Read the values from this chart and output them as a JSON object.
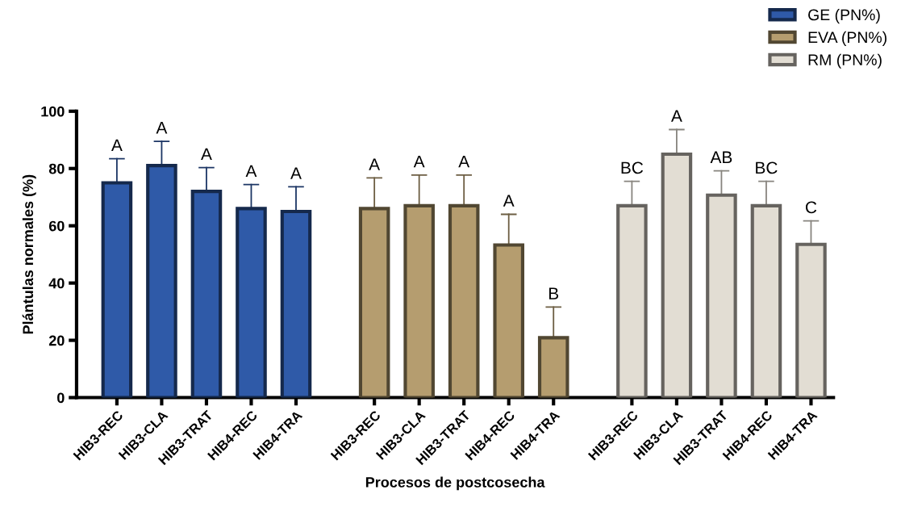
{
  "chart_data": {
    "type": "bar",
    "xlabel": "Procesos de postcosecha",
    "ylabel": "Plántulas normales (%)",
    "categories": [
      "HIB3-REC",
      "HIB3-CLA",
      "HIB3-TRAT",
      "HIB4-REC",
      "HIB4-TRA",
      "HIB3-REC",
      "HIB3-CLA",
      "HIB3-TRAT",
      "HIB4-REC",
      "HIB4-TRA",
      "HIB3-REC",
      "HIB3-CLA",
      "HIB3-TRAT",
      "HIB4-REC",
      "HIB4-TRA"
    ],
    "series": [
      {
        "name": "GE (PN%)",
        "color": "#2f5aa8",
        "values": [
          75,
          81,
          72,
          66,
          65,
          null,
          null,
          null,
          null,
          null,
          null,
          null,
          null,
          null,
          null
        ],
        "errors": [
          [
            75,
            83.4
          ],
          [
            81,
            89.5
          ],
          [
            72,
            80.3
          ],
          [
            66,
            74.4
          ],
          [
            65,
            73.6
          ],
          null,
          null,
          null,
          null,
          null,
          null,
          null,
          null,
          null,
          null
        ],
        "value_labels": [
          "A",
          "A",
          "A",
          "A",
          "A",
          null,
          null,
          null,
          null,
          null,
          null,
          null,
          null,
          null,
          null
        ]
      },
      {
        "name": "EVA (PN%)",
        "color": "#b59d6f",
        "values": [
          null,
          null,
          null,
          null,
          null,
          66,
          67,
          67,
          53.3,
          20.9,
          null,
          null,
          null,
          null,
          null
        ],
        "errors": [
          null,
          null,
          null,
          null,
          null,
          [
            66,
            76.7
          ],
          [
            67,
            77.7
          ],
          [
            67,
            77.7
          ],
          [
            53.3,
            64
          ],
          [
            20.9,
            31.6
          ],
          null,
          null,
          null,
          null,
          null
        ],
        "value_labels": [
          null,
          null,
          null,
          null,
          null,
          "A",
          "A",
          "A",
          "A",
          "B",
          null,
          null,
          null,
          null,
          null
        ]
      },
      {
        "name": "RM (PN%)",
        "color": "#e2ddd3",
        "values": [
          null,
          null,
          null,
          null,
          null,
          null,
          null,
          null,
          null,
          null,
          67,
          85,
          70.7,
          67,
          53.5
        ],
        "errors": [
          null,
          null,
          null,
          null,
          null,
          null,
          null,
          null,
          null,
          null,
          [
            67,
            75.5
          ],
          [
            85,
            93.6
          ],
          [
            70.7,
            79.2
          ],
          [
            67,
            75.5
          ],
          [
            53.5,
            61.7
          ]
        ],
        "value_labels": [
          null,
          null,
          null,
          null,
          null,
          null,
          null,
          null,
          null,
          null,
          "BC",
          "A",
          "AB",
          "BC",
          "C"
        ]
      }
    ],
    "ylim": [
      0,
      100
    ],
    "yticks": [
      0,
      20,
      40,
      60,
      80,
      100
    ],
    "grid": false,
    "legend": "top right"
  }
}
